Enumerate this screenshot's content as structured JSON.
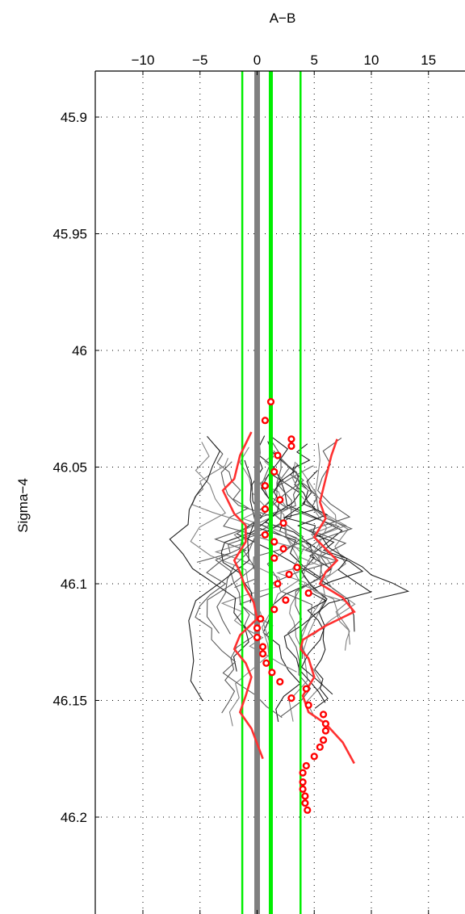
{
  "chart_data": {
    "type": "line",
    "title": "",
    "xlabel": "A−B",
    "ylabel": "Sigma−4",
    "xlim": [
      -14,
      18
    ],
    "ylim": [
      45.955,
      46.255
    ],
    "y_reversed": true,
    "x_axis_position": "top",
    "grid": "dotted",
    "xticks": [
      -10,
      -5,
      0,
      5,
      10,
      15
    ],
    "xtick_labels": [
      "−10",
      "−5",
      "0",
      "5",
      "10",
      "15"
    ],
    "yticks": [
      45.9,
      45.95,
      46,
      46.05,
      46.1,
      46.15,
      46.2
    ],
    "ytick_labels": [
      "45.9",
      "45.95",
      "46",
      "46.05",
      "46.1",
      "46.15",
      "46.2"
    ],
    "colors": {
      "profiles_dark": "#000000",
      "profiles_grey": "#808080",
      "mean_markers": "#ff0000",
      "envelope": "#ff3030",
      "reference": "#00ee00",
      "zero_line": "#808080"
    },
    "reference_lines": [
      {
        "x": 0,
        "color": "#808080",
        "width": "thick"
      },
      {
        "x": 1.2,
        "color": "#00ee00",
        "width": "thick"
      },
      {
        "x": -1.3,
        "color": "#00ee00",
        "width": "thin"
      },
      {
        "x": 3.8,
        "color": "#00ee00",
        "width": "thin"
      }
    ],
    "mean_points": {
      "x": [
        1.2,
        0.7,
        3.0,
        3.0,
        1.8,
        1.5,
        0.7,
        2.0,
        0.7,
        2.3,
        0.7,
        1.5,
        2.3,
        1.5,
        3.5,
        2.8,
        1.8,
        4.5,
        2.5,
        1.5,
        0.3,
        0.0,
        0.0,
        0.5,
        0.5,
        0.8,
        1.3,
        2.0,
        4.3,
        3.0,
        4.5,
        5.8,
        6.0,
        6.0,
        5.8,
        5.5,
        5.0,
        4.3,
        4.0,
        4.0,
        4.0,
        4.2,
        4.2,
        4.4
      ],
      "y": [
        46.022,
        46.03,
        46.038,
        46.041,
        46.045,
        46.052,
        46.058,
        46.064,
        46.068,
        46.074,
        46.079,
        46.082,
        46.085,
        46.089,
        46.093,
        46.096,
        46.1,
        46.104,
        46.107,
        46.111,
        46.115,
        46.119,
        46.123,
        46.127,
        46.13,
        46.134,
        46.138,
        46.142,
        46.145,
        46.149,
        46.152,
        46.156,
        46.16,
        46.163,
        46.167,
        46.17,
        46.174,
        46.178,
        46.181,
        46.185,
        46.188,
        46.191,
        46.194,
        46.197
      ]
    },
    "envelope_lower": {
      "x": [
        -0.5,
        -1.5,
        -2.0,
        -3.0,
        -2.0,
        -1.0,
        -1.0,
        -2.0,
        -1.5,
        -1.0,
        -0.3,
        0.0,
        -1.5,
        -2.0,
        -1.0,
        -0.5,
        -1.0,
        -1.5,
        -0.5,
        0.5
      ],
      "y": [
        46.035,
        46.045,
        46.055,
        46.06,
        46.07,
        46.075,
        46.082,
        46.09,
        46.095,
        46.102,
        46.108,
        46.115,
        46.122,
        46.128,
        46.134,
        46.14,
        46.148,
        46.155,
        46.162,
        46.175
      ]
    },
    "envelope_upper": {
      "x": [
        7.0,
        6.5,
        6.0,
        5.5,
        6.0,
        5.0,
        6.0,
        7.0,
        6.0,
        5.5,
        7.5,
        8.5,
        6.0,
        4.0,
        3.8,
        4.5,
        5.0,
        4.0,
        4.5,
        6.0,
        7.5,
        8.5
      ],
      "y": [
        46.038,
        46.045,
        46.055,
        46.065,
        46.072,
        46.08,
        46.085,
        46.09,
        46.095,
        46.1,
        46.106,
        46.112,
        46.118,
        46.124,
        46.128,
        46.132,
        46.14,
        46.148,
        46.155,
        46.16,
        46.168,
        46.177
      ]
    }
  }
}
